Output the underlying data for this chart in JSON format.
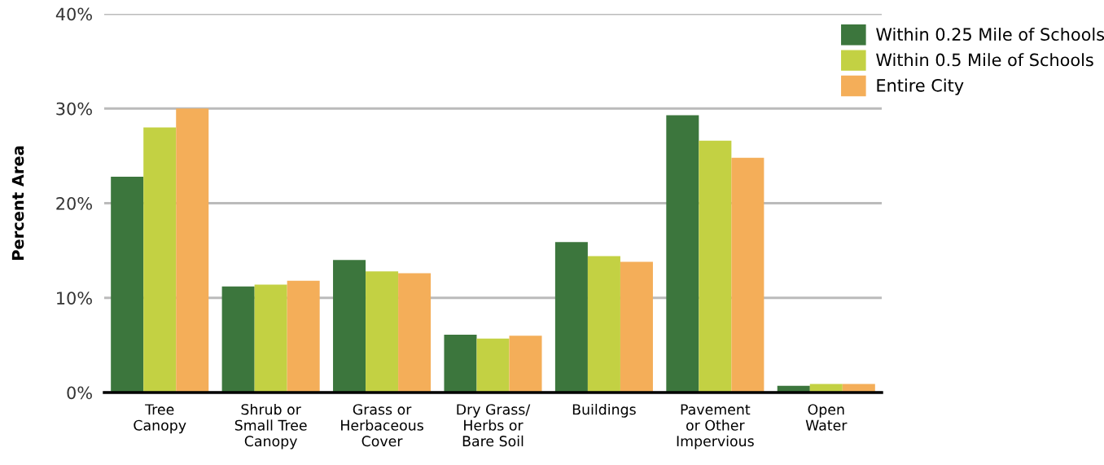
{
  "chart_data": {
    "type": "bar",
    "ylabel": "Percent Area",
    "categories": [
      "Tree\nCanopy",
      "Shrub or\nSmall Tree\nCanopy",
      "Grass or\nHerbaceous\nCover",
      "Dry Grass/\nHerbs or\nBare Soil",
      "Buildings",
      "Pavement\nor Other\nImpervious",
      "Open\nWater"
    ],
    "series": [
      {
        "name": "Within 0.25 Mile of Schools",
        "color": "#3c763d",
        "values": [
          22.8,
          11.2,
          14.0,
          6.1,
          15.9,
          29.3,
          0.7
        ]
      },
      {
        "name": "Within 0.5 Mile of Schools",
        "color": "#c3d143",
        "values": [
          28.0,
          11.4,
          12.8,
          5.7,
          14.4,
          26.6,
          0.9
        ]
      },
      {
        "name": "Entire City",
        "color": "#f4ae59",
        "values": [
          30.0,
          11.8,
          12.6,
          6.0,
          13.8,
          24.8,
          0.9
        ]
      }
    ],
    "ylim": [
      0,
      40
    ],
    "yticks": [
      {
        "value": 0,
        "label": "0%"
      },
      {
        "value": 10,
        "label": "10%"
      },
      {
        "value": 20,
        "label": "20%"
      },
      {
        "value": 30,
        "label": "30%"
      },
      {
        "value": 40,
        "label": "40%"
      }
    ],
    "grid": "y",
    "legend": "top right"
  }
}
